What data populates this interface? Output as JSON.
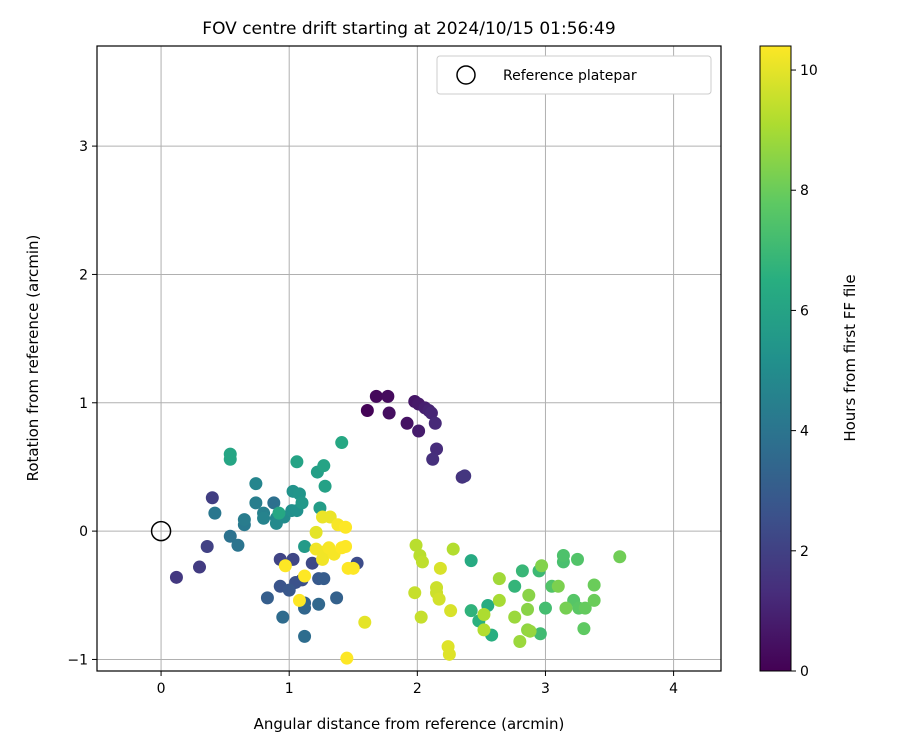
{
  "chart_data": {
    "type": "scatter",
    "title": "FOV centre drift starting at 2024/10/15 01:56:49",
    "xlabel": "Angular distance from reference (arcmin)",
    "ylabel": "Rotation from reference (arcmin)",
    "xlim": [
      -0.5,
      4.37
    ],
    "ylim": [
      -1.09,
      3.78
    ],
    "xticks": [
      0,
      1,
      2,
      3,
      4
    ],
    "yticks": [
      -1,
      0,
      1,
      2,
      3
    ],
    "grid": true,
    "legend": {
      "placement": "top-right",
      "entries": [
        "Reference platepar"
      ]
    },
    "reference_point": {
      "x": 0,
      "y": 0,
      "marker": "hollow-circle",
      "label": "Reference platepar"
    },
    "colorbar": {
      "label": "Hours from first FF file",
      "colormap": "viridis",
      "range": [
        0,
        10.4
      ],
      "ticks": [
        0,
        2,
        4,
        6,
        8,
        10
      ]
    },
    "points": [
      {
        "x": 1.61,
        "y": 0.94,
        "c": 0.1
      },
      {
        "x": 1.68,
        "y": 1.05,
        "c": 0.2
      },
      {
        "x": 1.77,
        "y": 1.05,
        "c": 0.3
      },
      {
        "x": 1.78,
        "y": 0.92,
        "c": 0.4
      },
      {
        "x": 1.92,
        "y": 0.84,
        "c": 0.5
      },
      {
        "x": 1.98,
        "y": 1.01,
        "c": 0.6
      },
      {
        "x": 2.01,
        "y": 0.99,
        "c": 0.7
      },
      {
        "x": 2.01,
        "y": 0.78,
        "c": 0.8
      },
      {
        "x": 2.06,
        "y": 0.96,
        "c": 0.9
      },
      {
        "x": 2.09,
        "y": 0.94,
        "c": 1.0
      },
      {
        "x": 2.11,
        "y": 0.92,
        "c": 1.1
      },
      {
        "x": 2.14,
        "y": 0.84,
        "c": 1.2
      },
      {
        "x": 2.15,
        "y": 0.64,
        "c": 1.3
      },
      {
        "x": 2.12,
        "y": 0.56,
        "c": 1.4
      },
      {
        "x": 2.35,
        "y": 0.42,
        "c": 1.5
      },
      {
        "x": 2.37,
        "y": 0.43,
        "c": 1.6
      },
      {
        "x": 0.12,
        "y": -0.36,
        "c": 1.7
      },
      {
        "x": 0.3,
        "y": -0.28,
        "c": 1.8
      },
      {
        "x": 0.4,
        "y": 0.26,
        "c": 1.9
      },
      {
        "x": 0.36,
        "y": -0.12,
        "c": 2.0
      },
      {
        "x": 0.93,
        "y": -0.22,
        "c": 2.1
      },
      {
        "x": 1.03,
        "y": -0.22,
        "c": 2.2
      },
      {
        "x": 1.18,
        "y": -0.25,
        "c": 2.3
      },
      {
        "x": 1.53,
        "y": -0.25,
        "c": 2.4
      },
      {
        "x": 1.1,
        "y": -0.38,
        "c": 2.5
      },
      {
        "x": 1.05,
        "y": -0.4,
        "c": 2.6
      },
      {
        "x": 0.93,
        "y": -0.43,
        "c": 2.7
      },
      {
        "x": 1.0,
        "y": -0.46,
        "c": 2.8
      },
      {
        "x": 1.23,
        "y": -0.37,
        "c": 2.9
      },
      {
        "x": 1.27,
        "y": -0.37,
        "c": 3.0
      },
      {
        "x": 0.83,
        "y": -0.52,
        "c": 3.1
      },
      {
        "x": 1.37,
        "y": -0.52,
        "c": 3.2
      },
      {
        "x": 1.12,
        "y": -0.56,
        "c": 3.3
      },
      {
        "x": 1.12,
        "y": -0.6,
        "c": 3.4
      },
      {
        "x": 1.23,
        "y": -0.57,
        "c": 3.5
      },
      {
        "x": 0.95,
        "y": -0.67,
        "c": 3.6
      },
      {
        "x": 1.12,
        "y": -0.82,
        "c": 3.7
      },
      {
        "x": 0.88,
        "y": 0.22,
        "c": 3.8
      },
      {
        "x": 0.54,
        "y": -0.04,
        "c": 3.9
      },
      {
        "x": 0.6,
        "y": -0.11,
        "c": 4.0
      },
      {
        "x": 0.42,
        "y": 0.14,
        "c": 4.1
      },
      {
        "x": 0.65,
        "y": 0.05,
        "c": 4.2
      },
      {
        "x": 0.65,
        "y": 0.09,
        "c": 4.3
      },
      {
        "x": 0.74,
        "y": 0.22,
        "c": 4.4
      },
      {
        "x": 0.8,
        "y": 0.14,
        "c": 4.5
      },
      {
        "x": 0.8,
        "y": 0.1,
        "c": 4.6
      },
      {
        "x": 0.74,
        "y": 0.37,
        "c": 4.7
      },
      {
        "x": 0.9,
        "y": 0.1,
        "c": 4.8
      },
      {
        "x": 0.9,
        "y": 0.06,
        "c": 4.9
      },
      {
        "x": 0.96,
        "y": 0.11,
        "c": 5.0
      },
      {
        "x": 1.02,
        "y": 0.16,
        "c": 5.1
      },
      {
        "x": 1.06,
        "y": 0.16,
        "c": 5.2
      },
      {
        "x": 1.03,
        "y": 0.31,
        "c": 5.3
      },
      {
        "x": 1.08,
        "y": 0.29,
        "c": 5.4
      },
      {
        "x": 1.1,
        "y": 0.22,
        "c": 5.5
      },
      {
        "x": 1.12,
        "y": -0.12,
        "c": 5.6
      },
      {
        "x": 1.24,
        "y": 0.18,
        "c": 5.7
      },
      {
        "x": 1.22,
        "y": 0.46,
        "c": 5.8
      },
      {
        "x": 1.28,
        "y": 0.35,
        "c": 5.9
      },
      {
        "x": 1.27,
        "y": 0.51,
        "c": 6.0
      },
      {
        "x": 1.06,
        "y": 0.54,
        "c": 6.0
      },
      {
        "x": 0.54,
        "y": 0.6,
        "c": 6.1
      },
      {
        "x": 0.54,
        "y": 0.56,
        "c": 6.1
      },
      {
        "x": 0.92,
        "y": 0.14,
        "c": 6.2
      },
      {
        "x": 1.41,
        "y": 0.69,
        "c": 6.2
      },
      {
        "x": 2.42,
        "y": -0.23,
        "c": 6.3
      },
      {
        "x": 2.55,
        "y": -0.58,
        "c": 6.4
      },
      {
        "x": 2.58,
        "y": -0.81,
        "c": 6.5
      },
      {
        "x": 2.48,
        "y": -0.7,
        "c": 6.6
      },
      {
        "x": 2.42,
        "y": -0.62,
        "c": 6.7
      },
      {
        "x": 2.76,
        "y": -0.43,
        "c": 6.8
      },
      {
        "x": 2.82,
        "y": -0.31,
        "c": 6.9
      },
      {
        "x": 2.95,
        "y": -0.31,
        "c": 7.0
      },
      {
        "x": 2.96,
        "y": -0.8,
        "c": 7.1
      },
      {
        "x": 3.0,
        "y": -0.6,
        "c": 7.2
      },
      {
        "x": 3.14,
        "y": -0.24,
        "c": 7.3
      },
      {
        "x": 3.14,
        "y": -0.19,
        "c": 7.4
      },
      {
        "x": 3.25,
        "y": -0.22,
        "c": 7.5
      },
      {
        "x": 3.05,
        "y": -0.43,
        "c": 7.5
      },
      {
        "x": 3.22,
        "y": -0.54,
        "c": 7.6
      },
      {
        "x": 3.26,
        "y": -0.6,
        "c": 7.7
      },
      {
        "x": 3.3,
        "y": -0.76,
        "c": 7.8
      },
      {
        "x": 3.31,
        "y": -0.6,
        "c": 7.9
      },
      {
        "x": 3.38,
        "y": -0.42,
        "c": 8.0
      },
      {
        "x": 3.38,
        "y": -0.54,
        "c": 8.0
      },
      {
        "x": 3.58,
        "y": -0.2,
        "c": 8.1
      },
      {
        "x": 3.16,
        "y": -0.6,
        "c": 8.2
      },
      {
        "x": 3.1,
        "y": -0.43,
        "c": 8.3
      },
      {
        "x": 2.97,
        "y": -0.27,
        "c": 8.4
      },
      {
        "x": 2.87,
        "y": -0.5,
        "c": 8.5
      },
      {
        "x": 2.86,
        "y": -0.61,
        "c": 8.5
      },
      {
        "x": 2.86,
        "y": -0.77,
        "c": 8.6
      },
      {
        "x": 2.88,
        "y": -0.78,
        "c": 8.7
      },
      {
        "x": 2.8,
        "y": -0.86,
        "c": 8.8
      },
      {
        "x": 2.76,
        "y": -0.67,
        "c": 8.8
      },
      {
        "x": 2.64,
        "y": -0.37,
        "c": 8.9
      },
      {
        "x": 2.64,
        "y": -0.54,
        "c": 9.0
      },
      {
        "x": 2.52,
        "y": -0.65,
        "c": 9.1
      },
      {
        "x": 2.52,
        "y": -0.77,
        "c": 9.2
      },
      {
        "x": 2.28,
        "y": -0.14,
        "c": 9.2
      },
      {
        "x": 2.02,
        "y": -0.19,
        "c": 9.3
      },
      {
        "x": 1.99,
        "y": -0.11,
        "c": 9.3
      },
      {
        "x": 2.04,
        "y": -0.24,
        "c": 9.4
      },
      {
        "x": 1.98,
        "y": -0.48,
        "c": 9.5
      },
      {
        "x": 2.03,
        "y": -0.67,
        "c": 9.5
      },
      {
        "x": 2.15,
        "y": -0.44,
        "c": 9.6
      },
      {
        "x": 2.15,
        "y": -0.48,
        "c": 9.6
      },
      {
        "x": 2.17,
        "y": -0.53,
        "c": 9.7
      },
      {
        "x": 2.18,
        "y": -0.29,
        "c": 9.8
      },
      {
        "x": 2.26,
        "y": -0.62,
        "c": 9.8
      },
      {
        "x": 2.24,
        "y": -0.9,
        "c": 9.9
      },
      {
        "x": 2.25,
        "y": -0.96,
        "c": 9.9
      },
      {
        "x": 1.59,
        "y": -0.71,
        "c": 10.0
      },
      {
        "x": 1.21,
        "y": -0.01,
        "c": 10.0
      },
      {
        "x": 1.26,
        "y": 0.11,
        "c": 10.1
      },
      {
        "x": 1.32,
        "y": 0.11,
        "c": 10.1
      },
      {
        "x": 1.21,
        "y": -0.14,
        "c": 10.2
      },
      {
        "x": 1.28,
        "y": -0.16,
        "c": 10.2
      },
      {
        "x": 1.26,
        "y": -0.22,
        "c": 10.2
      },
      {
        "x": 1.31,
        "y": -0.13,
        "c": 10.3
      },
      {
        "x": 1.35,
        "y": -0.18,
        "c": 10.3
      },
      {
        "x": 1.38,
        "y": 0.05,
        "c": 10.3
      },
      {
        "x": 1.44,
        "y": 0.03,
        "c": 10.4
      },
      {
        "x": 1.41,
        "y": -0.13,
        "c": 10.4
      },
      {
        "x": 1.44,
        "y": -0.12,
        "c": 10.4
      },
      {
        "x": 1.46,
        "y": -0.29,
        "c": 10.4
      },
      {
        "x": 1.5,
        "y": -0.29,
        "c": 10.4
      },
      {
        "x": 0.97,
        "y": -0.27,
        "c": 10.4
      },
      {
        "x": 1.08,
        "y": -0.54,
        "c": 10.4
      },
      {
        "x": 1.12,
        "y": -0.35,
        "c": 10.4
      },
      {
        "x": 1.45,
        "y": -0.99,
        "c": 10.4
      }
    ]
  }
}
